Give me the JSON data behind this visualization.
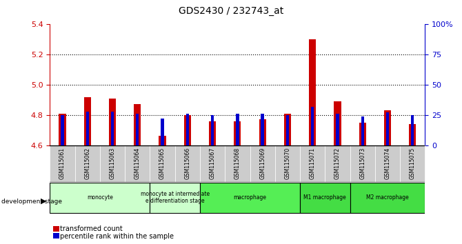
{
  "title": "GDS2430 / 232743_at",
  "samples": [
    "GSM115061",
    "GSM115062",
    "GSM115063",
    "GSM115064",
    "GSM115065",
    "GSM115066",
    "GSM115067",
    "GSM115068",
    "GSM115069",
    "GSM115070",
    "GSM115071",
    "GSM115072",
    "GSM115073",
    "GSM115074",
    "GSM115075"
  ],
  "red_values": [
    4.81,
    4.92,
    4.91,
    4.87,
    4.66,
    4.8,
    4.76,
    4.76,
    4.77,
    4.81,
    5.3,
    4.89,
    4.75,
    4.83,
    4.74
  ],
  "blue_values": [
    25,
    28,
    28,
    26,
    22,
    26,
    25,
    26,
    26,
    25,
    32,
    26,
    24,
    27,
    25
  ],
  "ylim_left": [
    4.6,
    5.4
  ],
  "ylim_right": [
    0,
    100
  ],
  "yticks_left": [
    4.6,
    4.8,
    5.0,
    5.2,
    5.4
  ],
  "yticks_right": [
    0,
    25,
    50,
    75,
    100
  ],
  "ytick_labels_right": [
    "0",
    "25",
    "50",
    "75",
    "100%"
  ],
  "baseline": 4.6,
  "red_color": "#cc0000",
  "blue_color": "#0000cc",
  "legend_red_label": "transformed count",
  "legend_blue_label": "percentile rank within the sample",
  "dev_stage_label": "development stage",
  "tick_color_left": "#cc0000",
  "tick_color_right": "#0000cc",
  "group_configs": [
    {
      "label": "monocyte",
      "start": 0,
      "end": 3,
      "color": "#ccffcc"
    },
    {
      "label": "monocyte at intermediate\ne differentiation stage",
      "start": 4,
      "end": 5,
      "color": "#ccffcc"
    },
    {
      "label": "macrophage",
      "start": 6,
      "end": 9,
      "color": "#55ee55"
    },
    {
      "label": "M1 macrophage",
      "start": 10,
      "end": 11,
      "color": "#44dd44"
    },
    {
      "label": "M2 macrophage",
      "start": 12,
      "end": 14,
      "color": "#44dd44"
    }
  ]
}
